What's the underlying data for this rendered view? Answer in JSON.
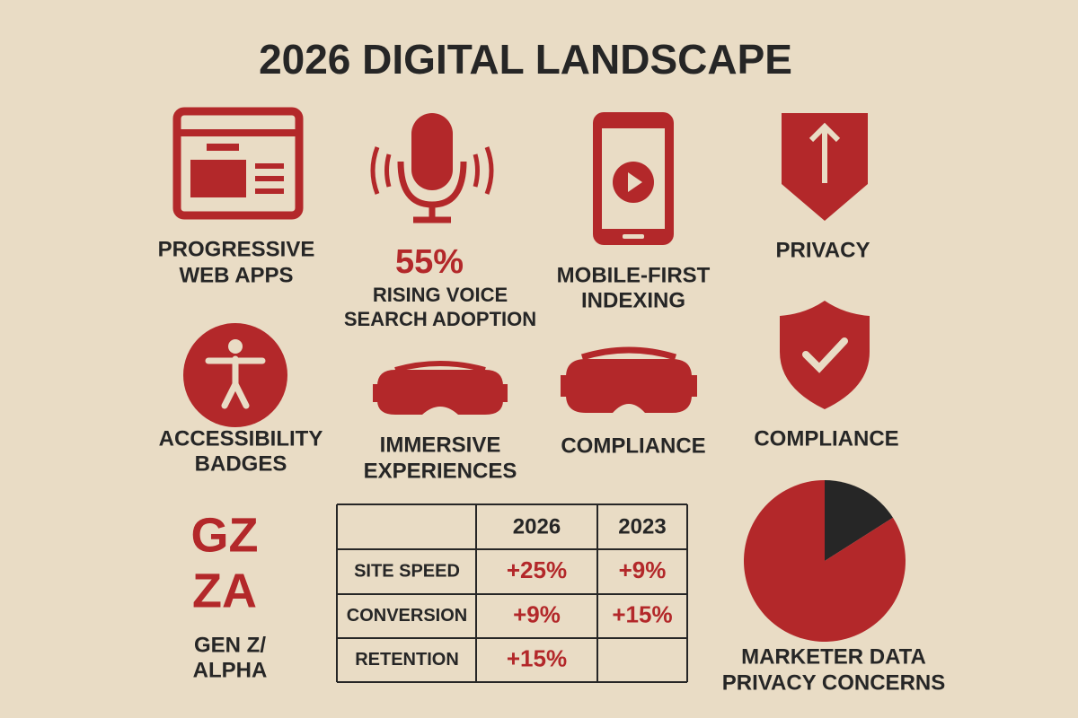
{
  "title": "2026 DIGITAL LANDSCAPE",
  "tiles": [
    {
      "lines": [
        "PROGRESSIVE",
        "WEB APPS"
      ]
    },
    {
      "stat": "55%",
      "lines": [
        "RISING VOICE",
        "SEARCH ADOPTION"
      ]
    },
    {
      "lines": [
        "MOBILE-FIRST",
        "INDEXING"
      ]
    },
    {
      "lines": [
        "PRIVACY"
      ]
    },
    {
      "lines": [
        "ACCESSIBILITY",
        "BADGES"
      ]
    },
    {
      "lines": [
        "IMMERSIVE",
        "EXPERIENCES"
      ]
    },
    {
      "lines": [
        "COMPLIANCE"
      ]
    },
    {
      "lines": [
        "COMPLIANCE"
      ]
    }
  ],
  "generations": {
    "codes": [
      "GZ",
      "ZA"
    ],
    "lines": [
      "GEN Z/",
      "ALPHA"
    ]
  },
  "table": {
    "columns": [
      "2026",
      "2023"
    ],
    "rows": [
      {
        "label": "SITE SPEED",
        "cells": [
          "+25%",
          "+9%"
        ]
      },
      {
        "label": "CONVERSION",
        "cells": [
          "+9%",
          "+15%"
        ]
      },
      {
        "label": "RETENTION",
        "cells": [
          "+15%",
          null
        ]
      }
    ]
  },
  "chart_data": {
    "type": "pie",
    "label_lines": [
      "MARKETER DATA",
      "PRIVACY CONCERNS"
    ],
    "values": [
      16,
      84
    ],
    "colors": [
      "#262626",
      "#b3282a"
    ]
  }
}
